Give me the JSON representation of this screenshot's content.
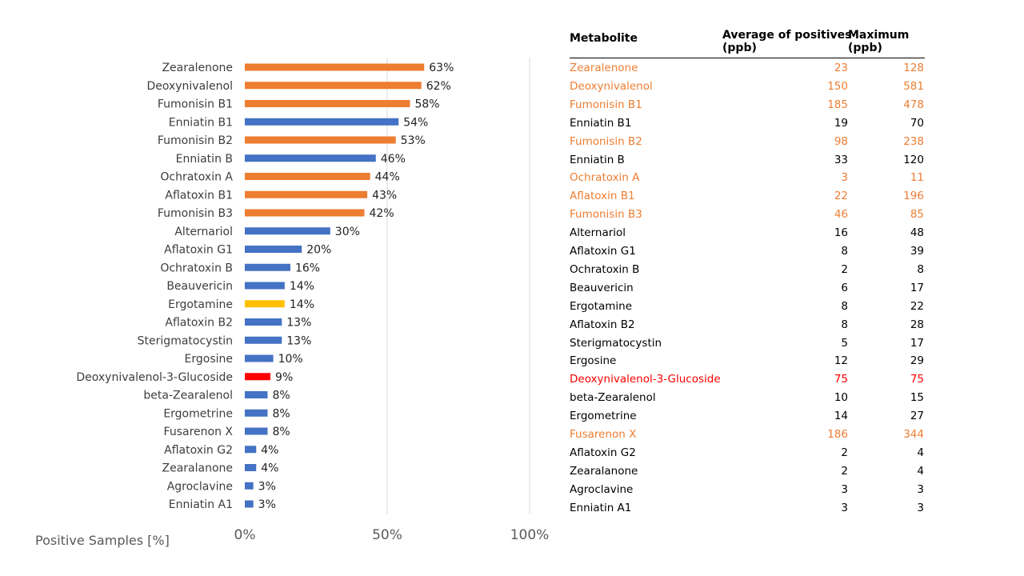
{
  "colors": {
    "orange": "#ed7d31",
    "blue": "#4472c4",
    "yellow": "#ffc000",
    "red": "#ff0000",
    "black": "#000000"
  },
  "chart_data": {
    "type": "bar",
    "orientation": "horizontal",
    "xlabel": "Positive Samples [%]",
    "xlim": [
      0,
      100
    ],
    "ticks": [
      "0%",
      "50%",
      "100%"
    ],
    "grid": true,
    "categories": [
      "Zearalenone",
      "Deoxynivalenol",
      "Fumonisin B1",
      "Enniatin B1",
      "Fumonisin B2",
      "Enniatin B",
      "Ochratoxin A",
      "Aflatoxin B1",
      "Fumonisin B3",
      "Alternariol",
      "Aflatoxin G1",
      "Ochratoxin B",
      "Beauvericin",
      "Ergotamine",
      "Aflatoxin B2",
      "Sterigmatocystin",
      "Ergosine",
      "Deoxynivalenol-3-Glucoside",
      "beta-Zearalenol",
      "Ergometrine",
      "Fusarenon X",
      "Aflatoxin G2",
      "Zearalanone",
      "Agroclavine",
      "Enniatin A1"
    ],
    "values": [
      63,
      62,
      58,
      54,
      53,
      46,
      44,
      43,
      42,
      30,
      20,
      16,
      14,
      14,
      13,
      13,
      10,
      9,
      8,
      8,
      8,
      4,
      4,
      3,
      3
    ],
    "value_labels": [
      "63%",
      "62%",
      "58%",
      "54%",
      "53%",
      "46%",
      "44%",
      "43%",
      "42%",
      "30%",
      "20%",
      "16%",
      "14%",
      "14%",
      "13%",
      "13%",
      "10%",
      "9%",
      "8%",
      "8%",
      "8%",
      "4%",
      "4%",
      "3%",
      "3%"
    ],
    "bar_colors": [
      "orange",
      "orange",
      "orange",
      "blue",
      "orange",
      "blue",
      "orange",
      "orange",
      "orange",
      "blue",
      "blue",
      "blue",
      "blue",
      "yellow",
      "blue",
      "blue",
      "blue",
      "red",
      "blue",
      "blue",
      "blue",
      "blue",
      "blue",
      "blue",
      "blue"
    ]
  },
  "table": {
    "headers": {
      "metabolite": "Metabolite",
      "average": "Average of positives\n(ppb)",
      "maximum": "Maximum\n(ppb)"
    },
    "rows": [
      {
        "metabolite": "Zearalenone",
        "average": "23",
        "maximum": "128",
        "color": "orange"
      },
      {
        "metabolite": "Deoxynivalenol",
        "average": "150",
        "maximum": "581",
        "color": "orange"
      },
      {
        "metabolite": "Fumonisin B1",
        "average": "185",
        "maximum": "478",
        "color": "orange"
      },
      {
        "metabolite": "Enniatin B1",
        "average": "19",
        "maximum": "70",
        "color": "black"
      },
      {
        "metabolite": "Fumonisin B2",
        "average": "98",
        "maximum": "238",
        "color": "orange"
      },
      {
        "metabolite": "Enniatin B",
        "average": "33",
        "maximum": "120",
        "color": "black"
      },
      {
        "metabolite": "Ochratoxin A",
        "average": "3",
        "maximum": "11",
        "color": "orange"
      },
      {
        "metabolite": "Aflatoxin B1",
        "average": "22",
        "maximum": "196",
        "color": "orange"
      },
      {
        "metabolite": "Fumonisin B3",
        "average": "46",
        "maximum": "85",
        "color": "orange"
      },
      {
        "metabolite": "Alternariol",
        "average": "16",
        "maximum": "48",
        "color": "black"
      },
      {
        "metabolite": "Aflatoxin G1",
        "average": "8",
        "maximum": "39",
        "color": "black"
      },
      {
        "metabolite": "Ochratoxin B",
        "average": "2",
        "maximum": "8",
        "color": "black"
      },
      {
        "metabolite": "Beauvericin",
        "average": "6",
        "maximum": "17",
        "color": "black"
      },
      {
        "metabolite": "Ergotamine",
        "average": "8",
        "maximum": "22",
        "color": "black"
      },
      {
        "metabolite": "Aflatoxin B2",
        "average": "8",
        "maximum": "28",
        "color": "black"
      },
      {
        "metabolite": "Sterigmatocystin",
        "average": "5",
        "maximum": "17",
        "color": "black"
      },
      {
        "metabolite": "Ergosine",
        "average": "12",
        "maximum": "29",
        "color": "black"
      },
      {
        "metabolite": "Deoxynivalenol-3-Glucoside",
        "average": "75",
        "maximum": "75",
        "color": "red"
      },
      {
        "metabolite": "beta-Zearalenol",
        "average": "10",
        "maximum": "15",
        "color": "black"
      },
      {
        "metabolite": "Ergometrine",
        "average": "14",
        "maximum": "27",
        "color": "black"
      },
      {
        "metabolite": "Fusarenon X",
        "average": "186",
        "maximum": "344",
        "color": "orange"
      },
      {
        "metabolite": "Aflatoxin G2",
        "average": "2",
        "maximum": "4",
        "color": "black"
      },
      {
        "metabolite": "Zearalanone",
        "average": "2",
        "maximum": "4",
        "color": "black"
      },
      {
        "metabolite": "Agroclavine",
        "average": "3",
        "maximum": "3",
        "color": "black"
      },
      {
        "metabolite": "Enniatin A1",
        "average": "3",
        "maximum": "3",
        "color": "black"
      }
    ]
  }
}
